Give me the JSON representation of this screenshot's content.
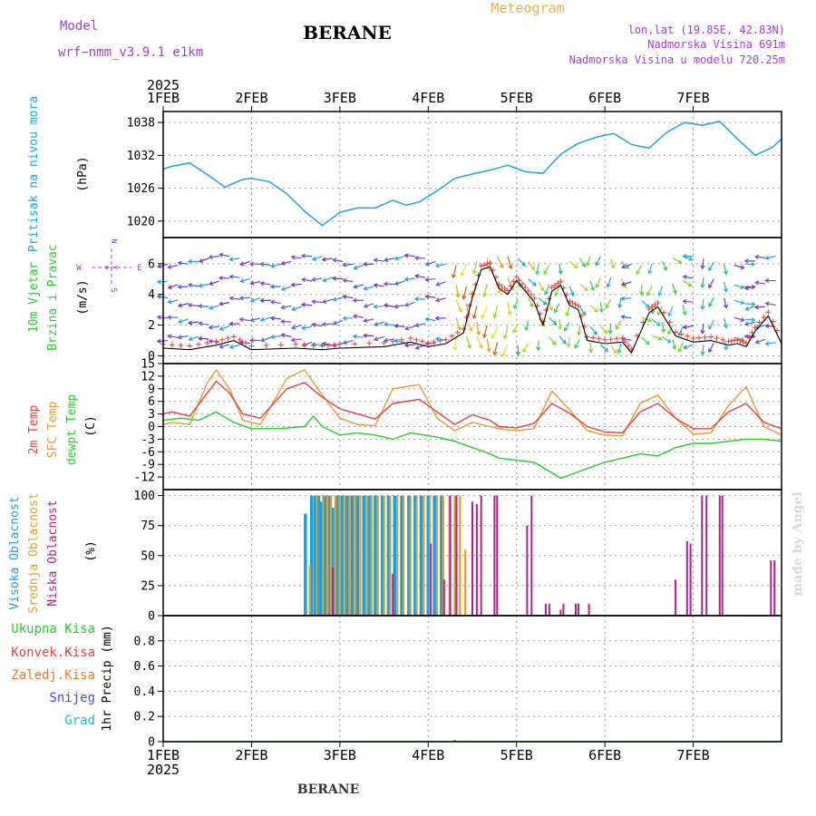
{
  "header": {
    "model_label": "Model",
    "model_value": "wrf−nmm_v3.9.1  e1km",
    "title": "BERANE",
    "meteogram": "Meteogram",
    "lonlat": "lon,lat (19.85E, 42.83N)",
    "altitude": "Nadmorska Visina 691m",
    "model_altitude": "Nadmorska Visina u modelu 720.25m",
    "footer_title": "BERANE",
    "watermark": "made by Angel"
  },
  "colors": {
    "pressure": "#1fa2e6",
    "temp2m": "#e8403c",
    "sfctemp": "#e89a30",
    "dewpt": "#28cc28",
    "high_cloud": "#1a9fe0",
    "mid_cloud": "#d9a030",
    "low_cloud": "#b0208a",
    "purple": "#a040d0",
    "orange_title": "#e8b050"
  },
  "chart_data": [
    {
      "type": "line",
      "panel": "pressure",
      "ylabel_lines": [
        "Pritisak na nivou mora",
        "(hPa)"
      ],
      "ylim": [
        1017,
        1040
      ],
      "yticks": [
        1020,
        1026,
        1032,
        1038
      ],
      "x_top_year": "2025",
      "x_bottom_year": "2025",
      "xtick_labels": [
        "1FEB",
        "2FEB",
        "3FEB",
        "4FEB",
        "5FEB",
        "6FEB",
        "7FEB"
      ],
      "series": [
        {
          "x": [
            0,
            0.1,
            0.3,
            0.5,
            0.7,
            0.9,
            1.0,
            1.2,
            1.4,
            1.6,
            1.8,
            2.0,
            2.2,
            2.4,
            2.6,
            2.75,
            2.9,
            3.1,
            3.3,
            3.5,
            3.7,
            3.9,
            4.1,
            4.3,
            4.5,
            4.7,
            4.9,
            5.1,
            5.3,
            5.5,
            5.7,
            5.9,
            6.1,
            6.3,
            6.5,
            6.7,
            6.9,
            7.0
          ],
          "y": [
            1029.5,
            1030.0,
            1030.6,
            1028.5,
            1026.2,
            1027.6,
            1027.8,
            1027.2,
            1025.0,
            1021.8,
            1019.2,
            1021.6,
            1022.4,
            1022.4,
            1023.8,
            1022.9,
            1023.5,
            1025.5,
            1027.8,
            1028.6,
            1029.3,
            1030.2,
            1029.0,
            1028.7,
            1032.2,
            1034.2,
            1035.3,
            1036.0,
            1034.0,
            1033.3,
            1036.2,
            1038.0,
            1037.5,
            1038.2,
            1035.0,
            1032.0,
            1033.5,
            1035.0
          ]
        }
      ]
    },
    {
      "type": "line",
      "panel": "wind",
      "ylabel_lines": [
        "10m Vjetar",
        "Brzina i Pravac",
        "(m/s)"
      ],
      "compass": {
        "n": "N",
        "s": "S",
        "w": "W",
        "e": "E"
      },
      "ylim": [
        -0.5,
        7.7
      ],
      "yticks": [
        0,
        2,
        4,
        6
      ],
      "series": [
        {
          "name_ref": "speed",
          "x": [
            0,
            0.3,
            0.6,
            0.8,
            1.0,
            1.5,
            1.8,
            2.0,
            2.5,
            2.8,
            3.0,
            3.2,
            3.4,
            3.5,
            3.6,
            3.7,
            3.8,
            3.9,
            4.0,
            4.1,
            4.2,
            4.3,
            4.4,
            4.5,
            4.6,
            4.7,
            4.8,
            5.0,
            5.2,
            5.3,
            5.5,
            5.6,
            5.8,
            6.0,
            6.2,
            6.4,
            6.5,
            6.6,
            6.7,
            6.85,
            7.0
          ],
          "y": [
            0.5,
            0.4,
            0.7,
            1.0,
            0.4,
            0.5,
            0.4,
            0.5,
            0.6,
            0.9,
            0.6,
            0.8,
            1.5,
            3.8,
            5.6,
            5.8,
            4.4,
            4.0,
            4.9,
            4.2,
            3.5,
            2.0,
            4.2,
            4.6,
            3.3,
            3.0,
            1.0,
            0.8,
            0.9,
            0.2,
            2.8,
            3.2,
            1.3,
            0.9,
            1.0,
            0.7,
            0.8,
            0.6,
            1.6,
            2.6,
            0.8
          ]
        }
      ]
    },
    {
      "type": "line",
      "panel": "temperature",
      "ylabel_lines": [
        "2m Temp",
        "SFC Temp",
        "dewpt Temp",
        "(C)"
      ],
      "ylim": [
        -15,
        15
      ],
      "yticks": [
        -12,
        -9,
        -6,
        -3,
        0,
        3,
        6,
        9,
        12,
        15
      ],
      "series": [
        {
          "name": "2m Temp",
          "x": [
            0,
            0.1,
            0.3,
            0.5,
            0.6,
            0.75,
            0.9,
            1.1,
            1.4,
            1.6,
            1.8,
            2.0,
            2.2,
            2.4,
            2.6,
            2.9,
            3.1,
            3.3,
            3.5,
            3.7,
            3.8,
            4.0,
            4.2,
            4.4,
            4.6,
            4.8,
            5.0,
            5.2,
            5.4,
            5.6,
            5.8,
            6.0,
            6.2,
            6.4,
            6.6,
            6.8,
            7.0
          ],
          "y": [
            3.0,
            3.5,
            2.5,
            8.0,
            10.8,
            8.0,
            3.0,
            2.0,
            9.0,
            10.5,
            7.0,
            4.2,
            3.0,
            1.8,
            5.5,
            6.5,
            3.5,
            0.5,
            2.8,
            1.5,
            0.0,
            -0.3,
            0.8,
            5.5,
            3.2,
            0.0,
            -1.3,
            -1.5,
            3.5,
            5.5,
            2.0,
            -0.5,
            -0.5,
            3.5,
            5.5,
            1.0,
            -0.5
          ]
        },
        {
          "name": "SFC Temp",
          "x": [
            0,
            0.1,
            0.3,
            0.5,
            0.6,
            0.75,
            0.9,
            1.1,
            1.4,
            1.6,
            1.8,
            2.0,
            2.2,
            2.4,
            2.6,
            2.9,
            3.1,
            3.3,
            3.5,
            3.7,
            3.8,
            4.0,
            4.2,
            4.4,
            4.6,
            4.8,
            5.0,
            5.2,
            5.4,
            5.6,
            5.8,
            6.0,
            6.2,
            6.4,
            6.6,
            6.8,
            7.0
          ],
          "y": [
            0.5,
            1.0,
            0.5,
            10.5,
            13.5,
            9.0,
            1.5,
            0.5,
            11.5,
            13.5,
            7.5,
            2.0,
            0.5,
            0.2,
            9.0,
            10.0,
            2.0,
            -1.0,
            1.0,
            0.0,
            -0.5,
            -1.0,
            -0.5,
            8.5,
            4.0,
            -1.0,
            -2.0,
            -2.2,
            5.5,
            7.5,
            2.0,
            -1.8,
            -1.5,
            5.0,
            9.5,
            0.0,
            -2.0
          ]
        },
        {
          "name": "dewpt Temp",
          "x": [
            0,
            0.2,
            0.4,
            0.6,
            0.8,
            1.0,
            1.3,
            1.6,
            1.7,
            1.8,
            2.0,
            2.2,
            2.4,
            2.6,
            2.8,
            2.95,
            3.1,
            3.3,
            3.5,
            3.7,
            3.8,
            4.0,
            4.2,
            4.4,
            4.5,
            4.8,
            5.0,
            5.2,
            5.4,
            5.6,
            5.8,
            6.0,
            6.2,
            6.4,
            6.6,
            6.8,
            7.0
          ],
          "y": [
            1.5,
            2.0,
            1.5,
            3.5,
            1.0,
            -0.5,
            -0.5,
            0.0,
            2.5,
            0.0,
            -2.0,
            -1.5,
            -2.0,
            -3.0,
            -1.5,
            -2.0,
            -2.5,
            -3.5,
            -5.0,
            -6.5,
            -7.5,
            -8.0,
            -8.5,
            -11.0,
            -12.3,
            -10.0,
            -8.5,
            -7.5,
            -6.5,
            -7.0,
            -5.0,
            -4.0,
            -4.0,
            -3.5,
            -3.0,
            -3.0,
            -3.5
          ]
        }
      ]
    },
    {
      "type": "bar",
      "panel": "clouds",
      "ylabel_lines": [
        "Visoka Oblacnost",
        "Srednja Oblacnost",
        "Niska Oblacnost",
        "(%)"
      ],
      "ylim": [
        0,
        105
      ],
      "yticks": [
        0,
        25,
        50,
        75,
        100
      ],
      "series": [
        {
          "name": "Visoka Oblacnost",
          "x": [
            1.61,
            1.68,
            1.72,
            1.76,
            1.79,
            1.83,
            1.88,
            1.92,
            1.97,
            2.03,
            2.08,
            2.14,
            2.2,
            2.27,
            2.33,
            2.4,
            2.48,
            2.55,
            2.62,
            2.7,
            2.78,
            2.85,
            2.92,
            3.0,
            3.07,
            3.15
          ],
          "y": [
            85,
            100,
            100,
            100,
            95,
            100,
            100,
            90,
            100,
            100,
            100,
            100,
            100,
            100,
            100,
            100,
            100,
            100,
            100,
            100,
            100,
            100,
            100,
            100,
            100,
            100
          ]
        },
        {
          "name": "Srednja Oblacnost",
          "x": [
            1.66,
            1.74,
            1.81,
            1.86,
            1.9,
            1.95,
            2.0,
            2.05,
            2.11,
            2.17,
            2.23,
            2.3,
            2.36,
            2.43,
            2.5,
            2.57,
            2.65,
            2.72,
            2.8,
            2.87,
            2.95,
            3.02,
            3.1,
            3.17,
            3.24,
            3.3,
            3.36,
            3.42
          ],
          "y": [
            42,
            100,
            100,
            100,
            100,
            100,
            100,
            100,
            100,
            100,
            100,
            100,
            100,
            100,
            100,
            100,
            100,
            100,
            100,
            100,
            100,
            100,
            100,
            100,
            100,
            100,
            100,
            55
          ]
        },
        {
          "name": "Niska Oblacnost",
          "x": [
            1.92,
            2.6,
            3.03,
            3.18,
            3.25,
            3.32,
            3.5,
            3.55,
            3.6,
            3.75,
            3.78,
            4.12,
            4.17,
            4.33,
            4.37,
            4.5,
            4.53,
            4.67,
            4.7,
            4.82,
            5.8,
            5.93,
            5.97,
            6.1,
            6.15,
            6.3,
            6.33,
            6.88,
            6.92
          ],
          "y": [
            40,
            35,
            60,
            30,
            100,
            100,
            95,
            93,
            100,
            100,
            100,
            75,
            100,
            10,
            10,
            5,
            10,
            10,
            10,
            10,
            30,
            62,
            60,
            100,
            100,
            100,
            100,
            46,
            46
          ]
        }
      ]
    },
    {
      "type": "line",
      "panel": "precipitation",
      "ylabel_lines": [
        "1hr Precip (mm)"
      ],
      "legend": [
        "Ukupna Kisa",
        "Konvek.Kisa",
        "Zaledj.Kisa",
        "Snijeg",
        "Grad"
      ],
      "ylim": [
        0,
        1.0
      ],
      "yticks": [
        0,
        0.2,
        0.4,
        0.6,
        0.8
      ],
      "series": [
        {
          "name": "Ukupna Kisa",
          "x": [
            0,
            3.28,
            3.3,
            3.32,
            7.0
          ],
          "y": [
            0,
            0,
            0.01,
            0,
            0
          ]
        }
      ]
    }
  ]
}
